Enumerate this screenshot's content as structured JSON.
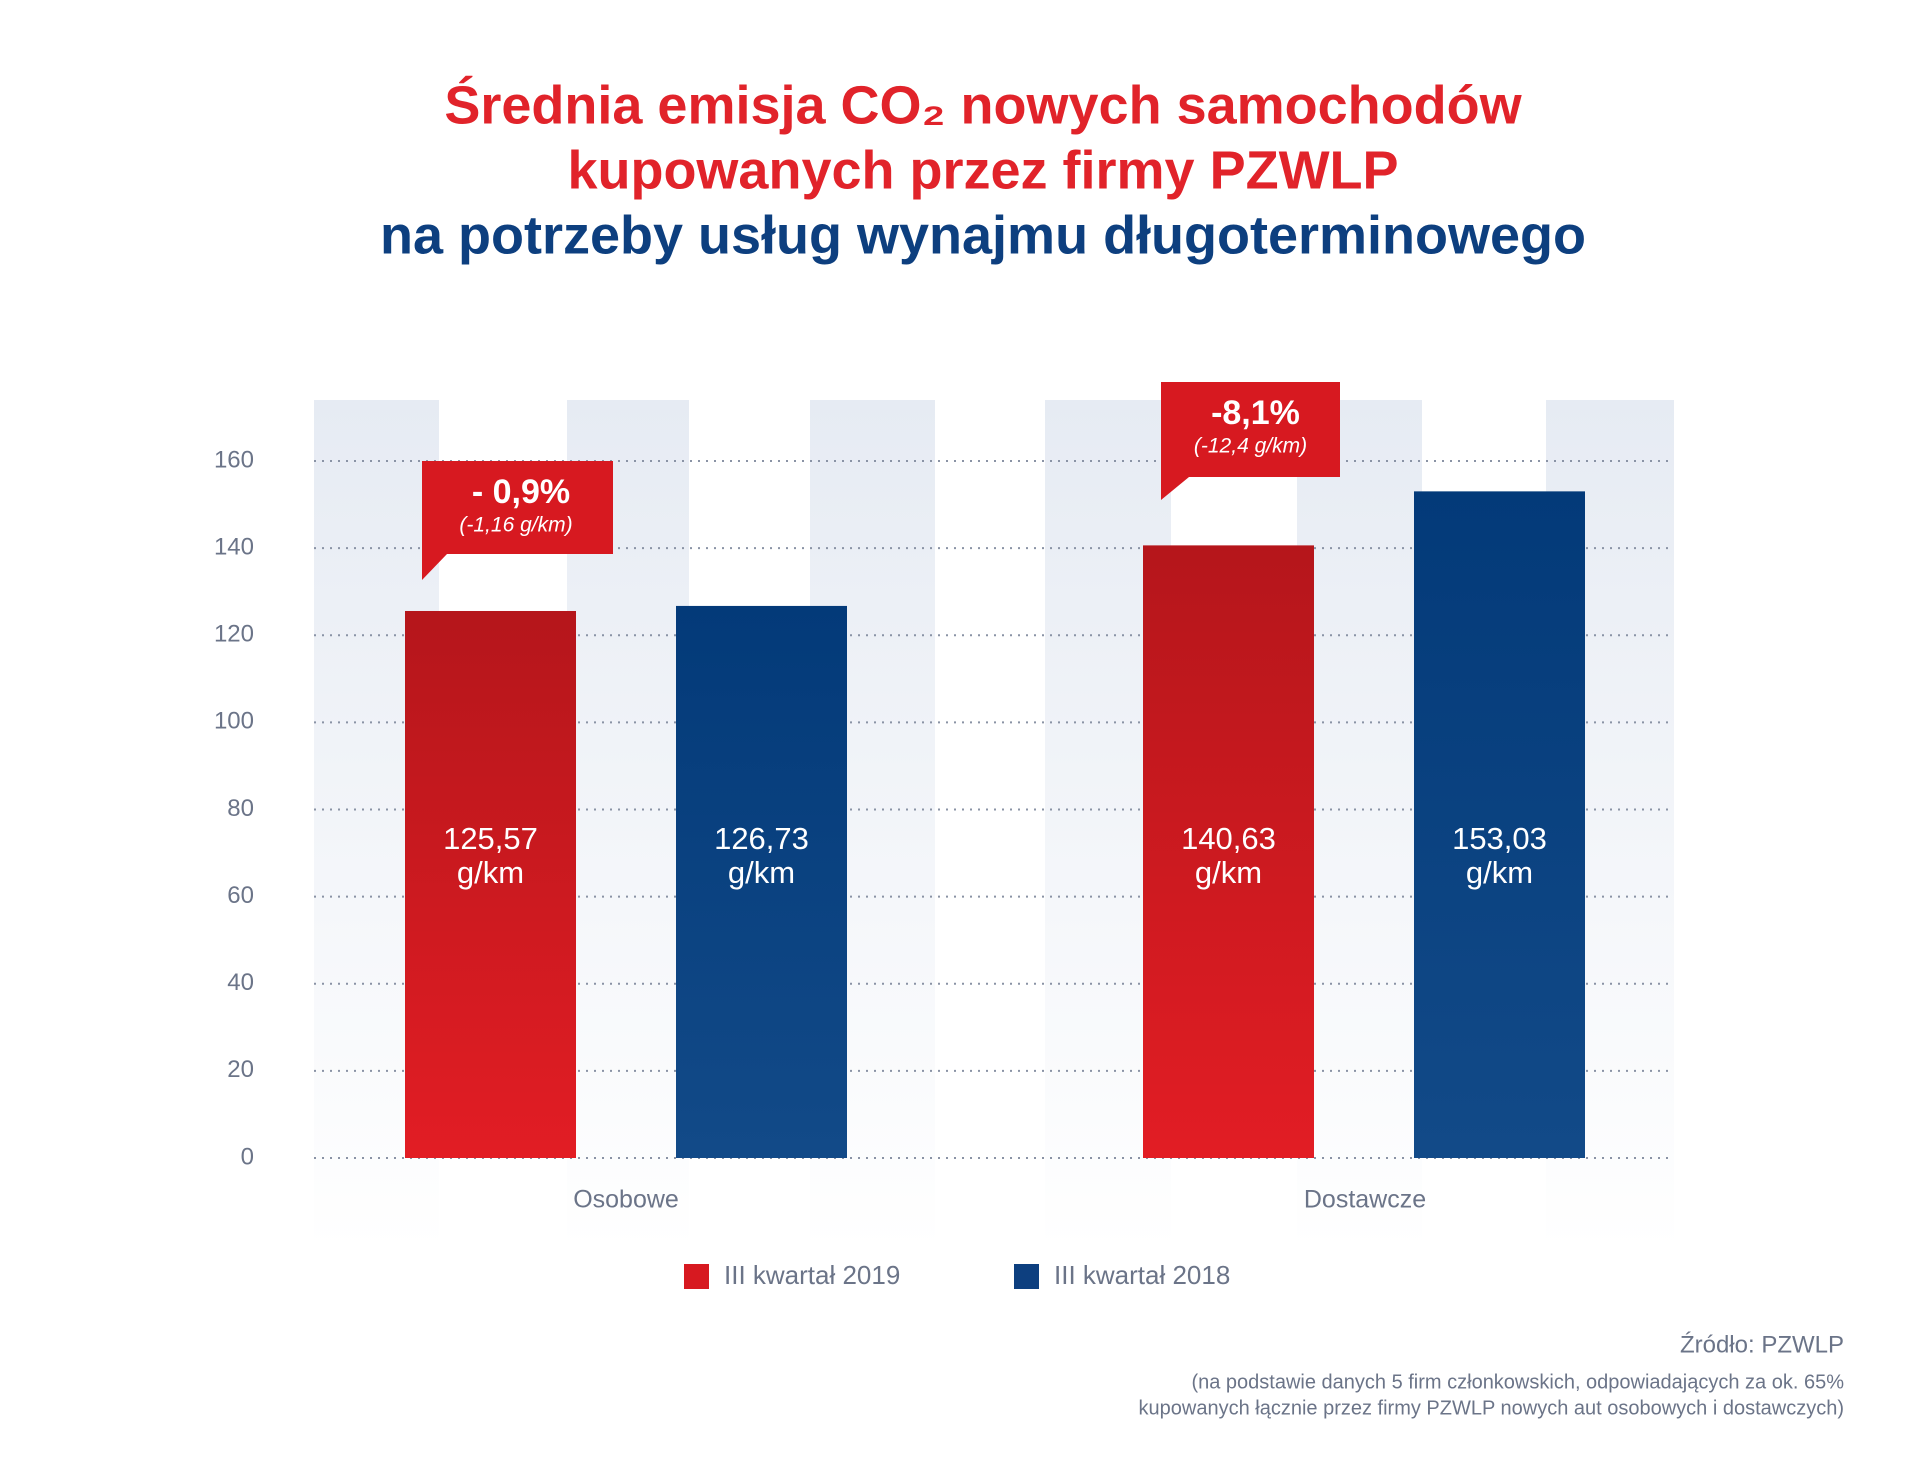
{
  "chart_data": {
    "type": "bar",
    "title": [
      "Średnia emisja CO₂ nowych samochodów",
      "kupowanych przez firmy PZWLP"
    ],
    "subtitle": "na potrzeby usług wynajmu długoterminowego",
    "categories": [
      "Osobowe",
      "Dostawcze"
    ],
    "series": [
      {
        "name": "III kwartał 2019",
        "color": "#d71920",
        "values": [
          125.57,
          140.63
        ],
        "value_labels": [
          "125,57 g/km",
          "140,63 g/km"
        ]
      },
      {
        "name": "III kwartał 2018",
        "color": "#0d3f7f",
        "values": [
          126.73,
          153.03
        ],
        "value_labels": [
          "126,73 g/km",
          "153,03 g/km"
        ]
      }
    ],
    "annotations": [
      {
        "text": "- 0,9%",
        "detail": "(-1,16 g/km)"
      },
      {
        "text": "-8,1%",
        "detail": "(-12,4 g/km)"
      }
    ],
    "ylim": [
      0,
      160
    ],
    "yticks": [
      0,
      20,
      40,
      60,
      80,
      100,
      120,
      140,
      160
    ],
    "grid": true,
    "legend": "bottom",
    "source": "Źródło: PZWLP",
    "note": [
      "(na podstawie danych 5 firm członkowskich, odpowiadających za ok. 65%",
      "kupowanych łącznie przez firmy PZWLP nowych aut osobowych i dostawczych)"
    ]
  }
}
